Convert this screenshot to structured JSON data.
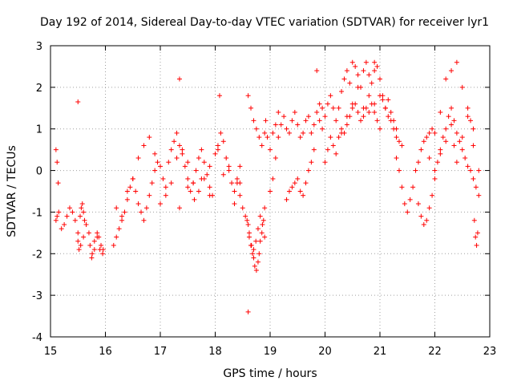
{
  "chart_data": {
    "type": "scatter",
    "title": "Day 192 of 2014, Sidereal Day-to-day VTEC variation (SDTVAR) for receiver lyr1",
    "xlabel": "GPS time / hours",
    "ylabel": "SDTVAR / TECUs",
    "xlim": [
      15,
      23
    ],
    "ylim": [
      -4,
      3
    ],
    "xticks": [
      15,
      16,
      17,
      18,
      19,
      20,
      21,
      22,
      23
    ],
    "yticks": [
      -4,
      -3,
      -2,
      -1,
      0,
      1,
      2,
      3
    ],
    "grid": true,
    "marker": "+",
    "series": [
      {
        "name": "SDTVAR",
        "color": "#ff0000",
        "x": [
          15.1,
          15.12,
          15.15,
          15.2,
          15.25,
          15.3,
          15.35,
          15.4,
          15.45,
          15.5,
          15.55,
          15.6,
          15.65,
          15.7,
          15.75,
          15.8,
          15.85,
          15.9,
          15.95,
          15.1,
          15.12,
          15.14,
          15.5,
          15.52,
          15.54,
          15.56,
          15.58,
          15.6,
          15.62,
          15.72,
          15.76,
          15.8,
          15.85,
          15.88,
          15.92,
          15.96,
          16.15,
          16.2,
          16.25,
          16.3,
          16.35,
          16.4,
          16.45,
          16.5,
          16.55,
          16.6,
          16.65,
          16.7,
          16.75,
          16.8,
          16.85,
          16.9,
          16.95,
          16.2,
          16.3,
          16.4,
          16.5,
          16.6,
          16.7,
          16.8,
          16.9,
          17.0,
          17.05,
          17.1,
          17.15,
          17.2,
          17.25,
          17.3,
          17.35,
          17.4,
          17.45,
          17.5,
          17.55,
          17.6,
          17.65,
          17.7,
          17.75,
          17.8,
          17.85,
          17.9,
          17.95,
          17.0,
          17.1,
          17.2,
          17.3,
          17.4,
          17.5,
          17.6,
          17.7,
          17.8,
          17.9,
          18.0,
          18.05,
          18.1,
          18.15,
          18.2,
          18.25,
          18.3,
          18.35,
          18.4,
          18.45,
          17.35,
          17.5,
          17.62,
          17.75,
          17.9,
          18.05,
          18.15,
          18.25,
          18.35,
          18.45,
          18.4,
          18.45,
          18.5,
          18.55,
          18.6,
          18.62,
          18.65,
          18.68,
          18.7,
          18.72,
          18.75,
          18.78,
          18.8,
          18.82,
          18.85,
          18.88,
          18.9,
          18.6,
          18.65,
          18.7,
          18.75,
          18.8,
          18.85,
          18.9,
          18.92,
          18.95,
          19.0,
          19.05,
          19.1,
          19.15,
          18.58,
          18.62,
          18.66,
          18.7,
          18.74,
          18.78,
          18.82,
          18.86,
          18.9,
          19.0,
          19.05,
          19.1,
          19.15,
          19.2,
          19.25,
          19.3,
          19.35,
          19.4,
          19.45,
          19.5,
          19.55,
          19.6,
          19.65,
          19.7,
          19.75,
          19.8,
          19.85,
          19.9,
          19.95,
          19.3,
          19.35,
          19.4,
          19.45,
          19.5,
          19.55,
          19.6,
          19.65,
          19.7,
          19.75,
          19.8,
          19.9,
          19.95,
          20.0,
          20.05,
          20.1,
          20.15,
          20.2,
          20.25,
          20.3,
          20.35,
          20.4,
          20.45,
          20.5,
          20.55,
          20.6,
          20.65,
          20.7,
          20.75,
          20.8,
          20.85,
          20.9,
          20.95,
          21.0,
          21.05,
          21.1,
          21.15,
          21.2,
          21.25,
          21.3,
          20.0,
          20.05,
          20.1,
          20.15,
          20.2,
          20.25,
          20.3,
          20.35,
          20.4,
          20.45,
          20.5,
          20.55,
          20.6,
          20.65,
          20.7,
          20.75,
          20.8,
          20.85,
          20.9,
          20.95,
          21.0,
          20.3,
          20.4,
          20.5,
          20.6,
          20.7,
          20.8,
          20.9,
          21.0,
          21.05,
          21.1,
          21.15,
          21.2,
          21.25,
          21.3,
          21.35,
          21.4,
          21.3,
          21.35,
          21.4,
          21.45,
          21.5,
          21.55,
          21.6,
          21.65,
          21.7,
          21.75,
          21.8,
          21.85,
          21.9,
          21.95,
          21.7,
          21.75,
          21.8,
          21.85,
          21.9,
          21.95,
          22.0,
          22.05,
          22.1,
          22.15,
          22.2,
          22.25,
          22.3,
          22.35,
          22.4,
          22.45,
          22.5,
          22.55,
          22.6,
          22.65,
          22.7,
          22.75,
          22.8,
          22.0,
          22.1,
          22.2,
          22.3,
          22.4,
          22.5,
          22.6,
          22.65,
          22.7,
          22.72,
          22.74,
          22.76,
          22.78,
          21.9,
          22.0,
          22.1,
          22.2,
          22.3,
          22.35,
          22.4,
          22.5,
          22.6,
          22.7,
          22.8,
          18.6,
          17.35,
          15.5,
          18.08,
          19.85,
          20.9
        ],
        "y": [
          -1.2,
          -1.1,
          -1.0,
          -1.4,
          -1.3,
          -1.1,
          -0.9,
          -1.0,
          -1.2,
          -1.5,
          -1.8,
          -1.6,
          -1.3,
          -1.5,
          -2.1,
          -1.9,
          -1.6,
          -1.9,
          -2.0,
          0.5,
          0.2,
          -0.3,
          -1.7,
          -1.9,
          -1.1,
          -0.9,
          -0.8,
          -1.0,
          -1.2,
          -1.8,
          -2.0,
          -1.7,
          -1.5,
          -1.6,
          -1.8,
          -1.9,
          -1.8,
          -1.6,
          -1.4,
          -1.2,
          -1.0,
          -0.7,
          -0.4,
          -0.2,
          -0.5,
          -0.8,
          -1.0,
          -1.2,
          -0.9,
          -0.6,
          -0.3,
          0.0,
          0.2,
          -0.9,
          -1.1,
          -0.5,
          -0.2,
          0.3,
          0.6,
          0.8,
          0.4,
          0.1,
          -0.2,
          -0.4,
          0.2,
          0.5,
          0.7,
          0.9,
          0.6,
          0.4,
          0.1,
          -0.2,
          -0.5,
          -0.3,
          0.0,
          0.3,
          0.5,
          0.2,
          -0.1,
          -0.4,
          -0.6,
          -0.8,
          -0.6,
          -0.3,
          0.3,
          0.5,
          0.2,
          -0.3,
          -0.5,
          -0.2,
          0.1,
          0.4,
          0.6,
          0.9,
          0.7,
          0.3,
          0.0,
          -0.3,
          -0.5,
          -0.2,
          0.1,
          -0.9,
          -0.4,
          -0.7,
          -0.2,
          -0.6,
          0.5,
          -0.1,
          0.1,
          -0.8,
          -0.3,
          -0.3,
          -0.6,
          -0.9,
          -1.1,
          -1.3,
          -1.6,
          -1.8,
          -2.0,
          -2.1,
          -2.3,
          -2.4,
          -2.2,
          -2.0,
          -1.7,
          -1.5,
          -1.2,
          -0.9,
          1.8,
          1.5,
          1.2,
          1.0,
          0.8,
          0.6,
          0.9,
          1.2,
          0.8,
          0.5,
          0.9,
          1.1,
          1.4,
          -1.2,
          -1.5,
          -1.8,
          -1.9,
          -1.7,
          -1.4,
          -1.1,
          -1.3,
          -1.6,
          -0.5,
          -0.2,
          0.3,
          0.8,
          1.1,
          1.3,
          1.0,
          0.9,
          1.2,
          1.4,
          1.1,
          0.8,
          0.9,
          1.2,
          1.3,
          0.9,
          1.1,
          1.4,
          1.6,
          1.5,
          -0.7,
          -0.5,
          -0.4,
          -0.3,
          -0.2,
          -0.5,
          -0.6,
          -0.3,
          0.0,
          0.2,
          0.5,
          1.2,
          1.0,
          1.3,
          1.6,
          1.8,
          1.5,
          1.2,
          1.5,
          1.9,
          2.2,
          2.4,
          2.1,
          2.6,
          2.5,
          2.3,
          2.0,
          2.4,
          2.6,
          2.3,
          2.1,
          2.4,
          2.5,
          2.2,
          1.8,
          1.5,
          1.7,
          1.4,
          1.2,
          1.0,
          0.2,
          0.5,
          0.8,
          0.6,
          0.4,
          0.8,
          1.0,
          0.9,
          1.1,
          1.3,
          1.5,
          1.6,
          1.4,
          1.2,
          1.3,
          1.5,
          1.8,
          1.6,
          1.4,
          1.2,
          1.0,
          0.9,
          1.3,
          1.6,
          2.0,
          1.5,
          1.4,
          1.6,
          1.8,
          1.7,
          1.5,
          1.3,
          1.2,
          1.0,
          0.8,
          0.7,
          0.6,
          0.3,
          0.0,
          -0.4,
          -0.8,
          -1.0,
          -0.7,
          -0.4,
          0.0,
          0.2,
          0.5,
          0.7,
          0.8,
          0.9,
          1.0,
          -0.8,
          -1.1,
          -1.3,
          -1.2,
          -0.9,
          -0.6,
          -0.2,
          0.2,
          0.5,
          0.8,
          1.0,
          1.3,
          1.5,
          1.2,
          0.9,
          0.7,
          0.5,
          0.3,
          0.1,
          0.0,
          -0.2,
          -0.4,
          -0.6,
          0.9,
          1.4,
          2.2,
          2.4,
          2.6,
          2.0,
          1.5,
          1.2,
          1.0,
          -1.2,
          -1.6,
          -1.8,
          -1.5,
          0.3,
          0.0,
          0.4,
          0.7,
          1.1,
          0.6,
          0.2,
          0.8,
          1.3,
          0.6,
          0.0,
          -3.4,
          2.2,
          1.65,
          1.8,
          2.4,
          2.6
        ]
      }
    ]
  }
}
